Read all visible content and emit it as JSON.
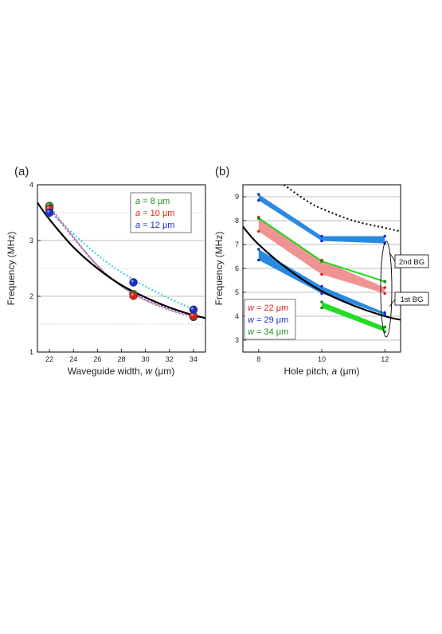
{
  "panels": {
    "a_label": "(a)",
    "b_label": "(b)"
  },
  "chart_data": [
    {
      "type": "scatter",
      "panel": "(a)",
      "xlabel_text": "Waveguide width, ",
      "xlabel_var": "w",
      "xlabel_unit": " (μm)",
      "ylabel": "Frequency (MHz)",
      "xlim": [
        21,
        35
      ],
      "ylim": [
        1,
        4
      ],
      "xticks": [
        22,
        24,
        26,
        28,
        30,
        32,
        34
      ],
      "yticks": [
        1,
        2,
        3,
        4
      ],
      "grid": "horizontal, dotted at half-steps",
      "legend_position": "top-right",
      "legend": [
        {
          "var": "a",
          "text": " = 8 μm",
          "color": "#1f8a1f"
        },
        {
          "var": "a",
          "text": " = 10 μm",
          "color": "#e0201a"
        },
        {
          "var": "a",
          "text": " = 12 μm",
          "color": "#1a2fd0"
        }
      ],
      "series": [
        {
          "name": "a = 8 μm",
          "color": "#2e8b2e",
          "fit_color": "#8a9a8a",
          "x": [
            22,
            29,
            34
          ],
          "y": [
            3.62,
            2.04,
            1.63
          ]
        },
        {
          "name": "a = 10 μm",
          "color": "#e0201a",
          "fit_color": "#c03ac0",
          "x": [
            22,
            29,
            34
          ],
          "y": [
            3.57,
            2.01,
            1.65
          ]
        },
        {
          "name": "a = 12 μm",
          "color": "#1a2fd0",
          "fit_color": "#30d0e0",
          "x": [
            22,
            29,
            34
          ],
          "y": [
            3.5,
            2.25,
            1.76
          ]
        }
      ],
      "theory_curve": {
        "color": "#000000",
        "style": "solid",
        "x": [
          21,
          22,
          24,
          26,
          28,
          30,
          32,
          34,
          35
        ],
        "y": [
          3.68,
          3.38,
          2.88,
          2.5,
          2.2,
          1.98,
          1.8,
          1.66,
          1.61
        ]
      },
      "fit_curves": [
        {
          "color": "#30d0e0",
          "x": [
            22,
            26,
            29,
            32,
            34
          ],
          "y": [
            3.52,
            2.74,
            2.3,
            1.96,
            1.77
          ]
        },
        {
          "color": "#c03ac0",
          "x": [
            22,
            26,
            29,
            32,
            34
          ],
          "y": [
            3.58,
            2.55,
            2.05,
            1.77,
            1.65
          ]
        },
        {
          "color": "#8a9a8a",
          "x": [
            22,
            26,
            29,
            32,
            34
          ],
          "y": [
            3.62,
            2.55,
            2.04,
            1.75,
            1.63
          ]
        }
      ]
    },
    {
      "type": "line",
      "panel": "(b)",
      "xlabel_text": "Hole pitch, ",
      "xlabel_var": "a",
      "xlabel_unit": " (μm)",
      "ylabel": "Frequency (MHz)",
      "xlim": [
        7.5,
        12.5
      ],
      "ylim": [
        2.5,
        9.5
      ],
      "xticks": [
        8,
        10,
        12
      ],
      "yticks": [
        3,
        4,
        5,
        6,
        7,
        8,
        9
      ],
      "grid": "horizontal",
      "legend_position": "bottom-left",
      "legend": [
        {
          "var": "w",
          "text": " = 22 μm",
          "color": "#e0201a"
        },
        {
          "var": "w",
          "text": " = 29 μm",
          "color": "#1a2fd0"
        },
        {
          "var": "w",
          "text": " = 34 μm",
          "color": "#1f8a1f"
        }
      ],
      "bands": [
        {
          "name": "w = 22 μm",
          "color": "#f08080",
          "edge": "#e0201a",
          "x": [
            8,
            10,
            12
          ],
          "lower": [
            7.55,
            5.75,
            4.95
          ],
          "upper": [
            8.15,
            6.35,
            5.2
          ]
        },
        {
          "name": "w = 29 μm 2nd BG",
          "color": "#2a8ae0",
          "edge": "#1a2fd0",
          "x": [
            8,
            10,
            12
          ],
          "lower": [
            8.85,
            7.15,
            7.05
          ],
          "upper": [
            9.1,
            7.35,
            7.35
          ]
        },
        {
          "name": "w = 29 μm 1st BG",
          "color": "#2a8ae0",
          "edge": "#1a2fd0",
          "x": [
            8,
            10,
            12
          ],
          "lower": [
            6.35,
            4.95,
            4.05
          ],
          "upper": [
            6.8,
            5.25,
            4.15
          ]
        },
        {
          "name": "w = 34 μm",
          "color": "#22dd22",
          "edge": "#159015",
          "x": [
            10,
            12
          ],
          "lower": [
            4.35,
            3.35
          ],
          "upper": [
            4.6,
            3.55
          ]
        }
      ],
      "green_line": {
        "color": "#22dd22",
        "x": [
          8,
          10,
          12
        ],
        "y": [
          8.1,
          6.3,
          5.45
        ]
      },
      "theory_curve": {
        "color": "#000000",
        "style": "solid",
        "x": [
          7.5,
          8,
          9,
          10,
          11,
          12,
          12.5
        ],
        "y": [
          7.75,
          7.0,
          5.9,
          5.05,
          4.45,
          4.0,
          3.85
        ]
      },
      "upper_curve": {
        "color": "#000000",
        "style": "dotted",
        "x": [
          8.8,
          9.5,
          10,
          11,
          12,
          12.5
        ],
        "y": [
          9.5,
          8.85,
          8.5,
          8.0,
          7.7,
          7.55
        ]
      },
      "annotations": [
        "2nd BG",
        "1st BG"
      ]
    }
  ]
}
